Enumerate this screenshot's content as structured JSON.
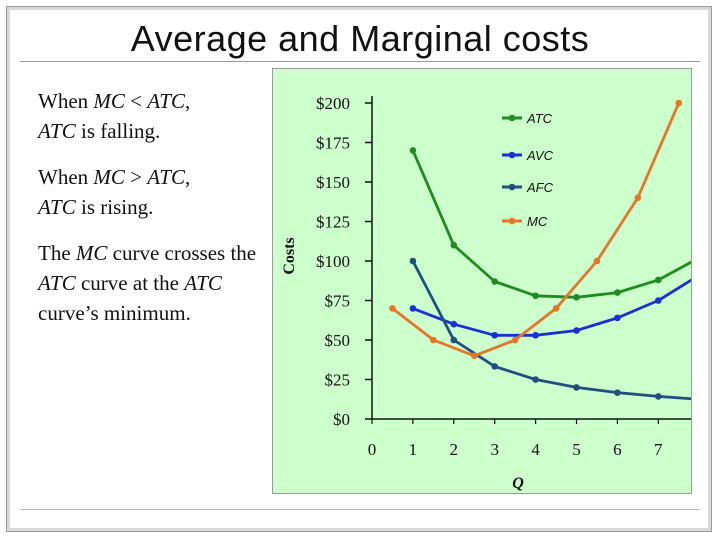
{
  "slide": {
    "title": "Average and Marginal costs",
    "bullets": [
      {
        "p1": "When ",
        "i1": "MC",
        "p2": " < ",
        "i2": "ATC",
        "p3": ",",
        "line2_i": "ATC",
        "line2_p": " is falling."
      },
      {
        "p1": "When ",
        "i1": "MC",
        "p2": " > ",
        "i2": "ATC",
        "p3": ",",
        "line2_i": "ATC",
        "line2_p": " is rising."
      },
      {
        "p1": "The ",
        "i1": "MC",
        "p2": " curve crosses the ",
        "i2": "ATC",
        "p3": " curve at the ",
        "i3": "ATC",
        "p4": " curve’s minimum."
      }
    ]
  },
  "chart_data": {
    "type": "line",
    "xlabel": "Q",
    "ylabel": "Costs",
    "xlim": [
      0,
      7.8
    ],
    "ylim": [
      0,
      200
    ],
    "x_ticks": [
      "0",
      "1",
      "2",
      "3",
      "4",
      "5",
      "6",
      "7"
    ],
    "y_ticks": [
      "$0",
      "$25",
      "$50",
      "$75",
      "$100",
      "$125",
      "$150",
      "$175",
      "$200"
    ],
    "y_tick_values": [
      0,
      25,
      50,
      75,
      100,
      125,
      150,
      175,
      200
    ],
    "grid": false,
    "legend_position": "top-right",
    "series": [
      {
        "name": "ATC",
        "color": "#1f8c1f",
        "points": [
          [
            1,
            170
          ],
          [
            2,
            110
          ],
          [
            3,
            87
          ],
          [
            4,
            78
          ],
          [
            5,
            77
          ],
          [
            6,
            80
          ],
          [
            7,
            88
          ],
          [
            8,
            102
          ]
        ]
      },
      {
        "name": "AVC",
        "color": "#1a2fd6",
        "points": [
          [
            1,
            70
          ],
          [
            2,
            60
          ],
          [
            3,
            53
          ],
          [
            4,
            53
          ],
          [
            5,
            56
          ],
          [
            6,
            64
          ],
          [
            7,
            75
          ],
          [
            8,
            91
          ]
        ]
      },
      {
        "name": "AFC",
        "color": "#1f4f7f",
        "points": [
          [
            1,
            100
          ],
          [
            2,
            50
          ],
          [
            3,
            33.3
          ],
          [
            4,
            25
          ],
          [
            5,
            20
          ],
          [
            6,
            16.7
          ],
          [
            7,
            14.3
          ],
          [
            8,
            12.5
          ]
        ]
      },
      {
        "name": "MC",
        "color": "#e8742a",
        "points": [
          [
            0.5,
            70
          ],
          [
            1.5,
            50
          ],
          [
            2.5,
            40
          ],
          [
            3.5,
            50
          ],
          [
            4.5,
            70
          ],
          [
            5.5,
            100
          ],
          [
            6.5,
            140
          ],
          [
            7.5,
            200
          ]
        ]
      }
    ]
  }
}
